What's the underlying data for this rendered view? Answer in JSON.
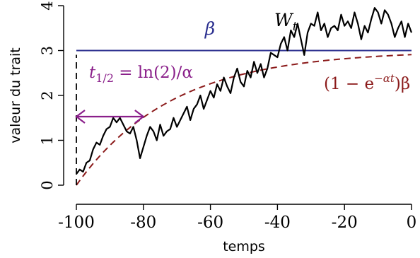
{
  "colors": {
    "beta": "#2b2f8f",
    "mean": "#8b1a1a",
    "halflife": "#8a1f8a",
    "trait": "#000000"
  },
  "chart_data": {
    "type": "line",
    "title": "",
    "xlabel": "temps",
    "ylabel": "valeur du trait",
    "xlim": [
      -100,
      0
    ],
    "ylim": [
      0,
      4
    ],
    "x_ticks": [
      -100,
      -80,
      -60,
      -40,
      -20,
      0
    ],
    "x_tick_labels": [
      "-100",
      "-80",
      "-60",
      "-40",
      "-20",
      "0"
    ],
    "y_ticks": [
      0,
      1,
      2,
      3,
      4
    ],
    "y_tick_labels": [
      "0",
      "1",
      "2",
      "3",
      "4"
    ],
    "grid": false,
    "legend": "none",
    "beta_value": 3,
    "alpha_value": 0.035,
    "half_life": 20,
    "annotations": {
      "beta_label": "β",
      "series_label": "W",
      "series_sub": "t",
      "half_life_t": "t",
      "half_life_sub": "1/2",
      "half_life_rest": " = ln(2)/α",
      "mean_prefix": "(1 − e",
      "mean_exp": "−αt",
      "mean_suffix": ")β"
    },
    "series": [
      {
        "x": [
          -100,
          -99,
          -98,
          -97,
          -96,
          -95,
          -94,
          -93,
          -92,
          -91,
          -90,
          -89,
          -88,
          -87,
          -86,
          -85,
          -84,
          -83,
          -82,
          -81,
          -80,
          -79,
          -78,
          -77,
          -76,
          -75,
          -74,
          -73,
          -72,
          -71,
          -70,
          -69,
          -68,
          -67,
          -66,
          -65,
          -64,
          -63,
          -62,
          -61,
          -60,
          -59,
          -58,
          -57,
          -56,
          -55,
          -54,
          -53,
          -52,
          -51,
          -50,
          -49,
          -48,
          -47,
          -46,
          -45,
          -44,
          -43,
          -42,
          -41,
          -40,
          -39,
          -38,
          -37,
          -36,
          -35,
          -34,
          -33,
          -32,
          -31,
          -30,
          -29,
          -28,
          -27,
          -26,
          -25,
          -24,
          -23,
          -22,
          -21,
          -20,
          -19,
          -18,
          -17,
          -16,
          -15,
          -14,
          -13,
          -12,
          -11,
          -10,
          -9,
          -8,
          -7,
          -6,
          -5,
          -4,
          -3,
          -2,
          -1,
          0
        ],
        "values": [
          0.25,
          0.35,
          0.3,
          0.5,
          0.55,
          0.8,
          0.95,
          0.9,
          1.1,
          1.25,
          1.3,
          1.5,
          1.4,
          1.5,
          1.35,
          1.2,
          1.15,
          1.3,
          1.0,
          0.6,
          0.85,
          1.1,
          1.3,
          1.2,
          1.0,
          1.35,
          1.1,
          1.2,
          1.25,
          1.5,
          1.3,
          1.45,
          1.6,
          1.75,
          1.45,
          1.7,
          1.8,
          2.0,
          1.7,
          1.9,
          2.1,
          1.95,
          2.25,
          2.1,
          2.4,
          2.2,
          2.05,
          2.4,
          2.6,
          2.3,
          2.2,
          2.55,
          2.4,
          2.75,
          2.5,
          2.7,
          2.4,
          2.6,
          2.95,
          2.9,
          2.85,
          3.15,
          3.3,
          3.0,
          3.45,
          3.3,
          3.6,
          3.25,
          2.9,
          3.4,
          3.6,
          3.55,
          3.85,
          3.45,
          3.6,
          3.3,
          3.5,
          3.55,
          3.45,
          3.8,
          3.55,
          3.65,
          3.5,
          3.85,
          3.6,
          3.25,
          3.55,
          3.4,
          3.7,
          3.95,
          3.85,
          3.6,
          3.9,
          3.8,
          3.6,
          3.3,
          3.5,
          3.65,
          3.3,
          3.6,
          3.4
        ]
      }
    ]
  }
}
